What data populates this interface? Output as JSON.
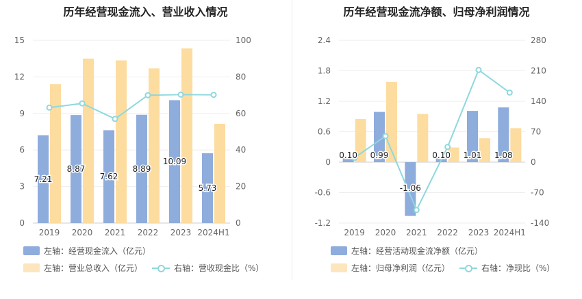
{
  "colors": {
    "bar1": "#8eacdc",
    "bar2": "#fddca0",
    "line": "#8ed8dd",
    "grid": "#eeeeee",
    "axis": "#666666"
  },
  "chart_data": [
    {
      "type": "bar",
      "title": "历年经营现金流入、营业收入情况",
      "categories": [
        "2019",
        "2020",
        "2021",
        "2022",
        "2023",
        "2024H1"
      ],
      "left_axis": {
        "ticks": [
          "0",
          "3",
          "6",
          "9",
          "12",
          "15"
        ],
        "ylim": [
          0,
          15
        ]
      },
      "right_axis": {
        "ticks": [
          "0",
          "20",
          "40",
          "60",
          "80",
          "100"
        ],
        "ylim": [
          0,
          100
        ]
      },
      "series": [
        {
          "name": "左轴：经营现金流入（亿元）",
          "kind": "bar",
          "axis": "left",
          "values": [
            7.21,
            8.87,
            7.62,
            8.89,
            10.09,
            5.73
          ],
          "labels": [
            "7.21",
            "8.87",
            "7.62",
            "8.89",
            "10.09",
            "5.73"
          ]
        },
        {
          "name": "左轴：营业总收入（亿元）",
          "kind": "bar",
          "axis": "left",
          "values": [
            11.4,
            13.5,
            13.35,
            12.7,
            14.35,
            8.15
          ]
        },
        {
          "name": "右轴：营收现金比（%）",
          "kind": "line",
          "axis": "right",
          "values": [
            63.2,
            65.5,
            57.0,
            70.0,
            70.3,
            70.2
          ]
        }
      ]
    },
    {
      "type": "bar",
      "title": "历年经营现金流净额、归母净利润情况",
      "categories": [
        "2019",
        "2020",
        "2021",
        "2022",
        "2023",
        "2024H1"
      ],
      "left_axis": {
        "ticks": [
          "-1.2",
          "-0.6",
          "0",
          "0.6",
          "1.2",
          "1.8",
          "2.4"
        ],
        "ylim": [
          -1.2,
          2.4
        ]
      },
      "right_axis": {
        "ticks": [
          "-140",
          "-70",
          "0",
          "70",
          "140",
          "210",
          "280"
        ],
        "ylim": [
          -140,
          280
        ]
      },
      "series": [
        {
          "name": "左轴：经营活动现金流净额（亿元）",
          "kind": "bar",
          "axis": "left",
          "values": [
            0.1,
            0.99,
            -1.06,
            0.1,
            1.01,
            1.08
          ],
          "labels": [
            "0.10",
            "0.99",
            "-1.06",
            "0.10",
            "1.01",
            "1.08"
          ]
        },
        {
          "name": "左轴：归母净利润（亿元）",
          "kind": "bar",
          "axis": "left",
          "values": [
            0.85,
            1.58,
            0.95,
            0.29,
            0.47,
            0.67
          ]
        },
        {
          "name": "右轴：净现比（%）",
          "kind": "line",
          "axis": "right",
          "values": [
            10,
            60,
            -110,
            35,
            212,
            160
          ]
        }
      ]
    }
  ]
}
